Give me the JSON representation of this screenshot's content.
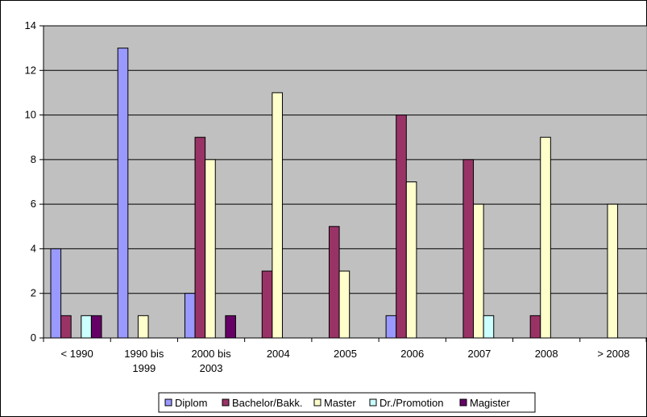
{
  "chart_data": {
    "type": "bar",
    "title": "",
    "xlabel": "",
    "ylabel": "",
    "ylim": [
      0,
      14
    ],
    "yticks": [
      0,
      2,
      4,
      6,
      8,
      10,
      12,
      14
    ],
    "grid": true,
    "legend_position": "bottom",
    "categories": [
      [
        "< 1990"
      ],
      [
        "1990 bis",
        "1999"
      ],
      [
        "2000 bis",
        "2003"
      ],
      [
        "2004"
      ],
      [
        "2005"
      ],
      [
        "2006"
      ],
      [
        "2007"
      ],
      [
        "2008"
      ],
      [
        "> 2008"
      ]
    ],
    "series": [
      {
        "name": "Diplom",
        "color": "#9999ff",
        "values": [
          4,
          13,
          2,
          0,
          0,
          1,
          0,
          0,
          0
        ]
      },
      {
        "name": "Bachelor/Bakk.",
        "color": "#993366",
        "values": [
          1,
          0,
          9,
          3,
          5,
          10,
          8,
          1,
          0
        ]
      },
      {
        "name": "Master",
        "color": "#ffffcc",
        "values": [
          0,
          1,
          8,
          11,
          3,
          7,
          6,
          9,
          6
        ]
      },
      {
        "name": "Dr./Promotion",
        "color": "#ccffff",
        "values": [
          1,
          0,
          0,
          0,
          0,
          0,
          1,
          0,
          0
        ]
      },
      {
        "name": "Magister",
        "color": "#660066",
        "values": [
          1,
          0,
          1,
          0,
          0,
          0,
          0,
          0,
          0
        ]
      }
    ],
    "plot_background": "#c0c0c0"
  }
}
